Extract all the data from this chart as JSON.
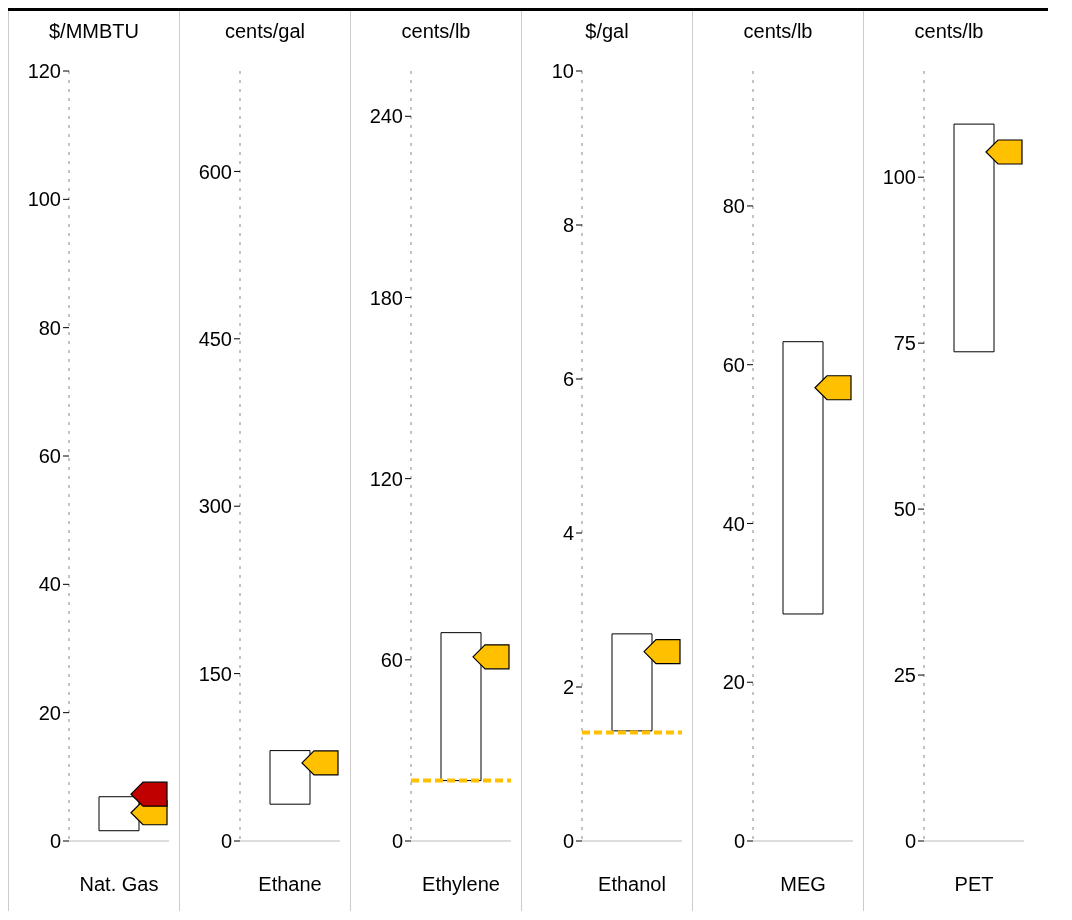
{
  "chart_data": [
    {
      "type": "bar",
      "ylabel": "$/MMBTU",
      "categories": [
        "Nat. Gas"
      ],
      "ylim": [
        0,
        120
      ],
      "yticks": [
        0,
        20,
        40,
        60,
        80,
        100,
        120
      ],
      "grid": false,
      "legend": false,
      "series": [
        {
          "color": "#ffffff",
          "base": [
            1.6
          ],
          "values": [
            5.3
          ]
        },
        {
          "type": "scatter",
          "color": "#ffc000",
          "values": [
            4.4
          ]
        },
        {
          "type": "scatter",
          "color": "#c00000",
          "values": [
            7.3
          ]
        }
      ]
    },
    {
      "type": "bar",
      "ylabel": "cents/gal",
      "categories": [
        "Ethane"
      ],
      "ylim": [
        0,
        690
      ],
      "yticks": [
        0,
        150,
        300,
        450,
        600
      ],
      "grid": false,
      "legend": false,
      "series": [
        {
          "color": "#ffffff",
          "base": [
            33
          ],
          "values": [
            48
          ]
        },
        {
          "type": "scatter",
          "color": "#ffc000",
          "values": [
            70
          ]
        }
      ]
    },
    {
      "type": "bar",
      "ylabel": "cents/lb",
      "categories": [
        "Ethylene"
      ],
      "ylim": [
        0,
        255
      ],
      "yticks": [
        0,
        60,
        120,
        180,
        240
      ],
      "grid": false,
      "legend": false,
      "ref_lines": [
        {
          "axis": "y",
          "value": 20,
          "color": "#ffc000",
          "line_style": "dashed"
        }
      ],
      "series": [
        {
          "color": "#ffffff",
          "base": [
            20
          ],
          "values": [
            49
          ]
        },
        {
          "type": "scatter",
          "color": "#ffc000",
          "values": [
            61
          ]
        }
      ]
    },
    {
      "type": "bar",
      "ylabel": "$/gal",
      "categories": [
        "Ethanol"
      ],
      "ylim": [
        0,
        10
      ],
      "yticks": [
        0,
        2,
        4,
        6,
        8,
        10
      ],
      "grid": false,
      "legend": false,
      "ref_lines": [
        {
          "axis": "y",
          "value": 1.41,
          "color": "#ffc000",
          "line_style": "dashed"
        }
      ],
      "series": [
        {
          "color": "#ffffff",
          "base": [
            1.43
          ],
          "values": [
            1.26
          ]
        },
        {
          "type": "scatter",
          "color": "#ffc000",
          "values": [
            2.46
          ]
        }
      ]
    },
    {
      "type": "bar",
      "ylabel": "cents/lb",
      "categories": [
        "MEG"
      ],
      "ylim": [
        0,
        97
      ],
      "yticks": [
        0,
        20,
        40,
        60,
        80
      ],
      "grid": false,
      "legend": false,
      "series": [
        {
          "color": "#ffffff",
          "base": [
            28.6
          ],
          "values": [
            34.3
          ]
        },
        {
          "type": "scatter",
          "color": "#ffc000",
          "values": [
            57.1
          ]
        }
      ]
    },
    {
      "type": "bar",
      "ylabel": "cents/lb",
      "categories": [
        "PET"
      ],
      "ylim": [
        0,
        116
      ],
      "yticks": [
        0,
        25,
        50,
        75,
        100
      ],
      "grid": false,
      "legend": false,
      "series": [
        {
          "color": "#ffffff",
          "base": [
            73.7
          ],
          "values": [
            34.3
          ]
        },
        {
          "type": "scatter",
          "color": "#ffc000",
          "values": [
            103.8
          ]
        }
      ]
    }
  ]
}
